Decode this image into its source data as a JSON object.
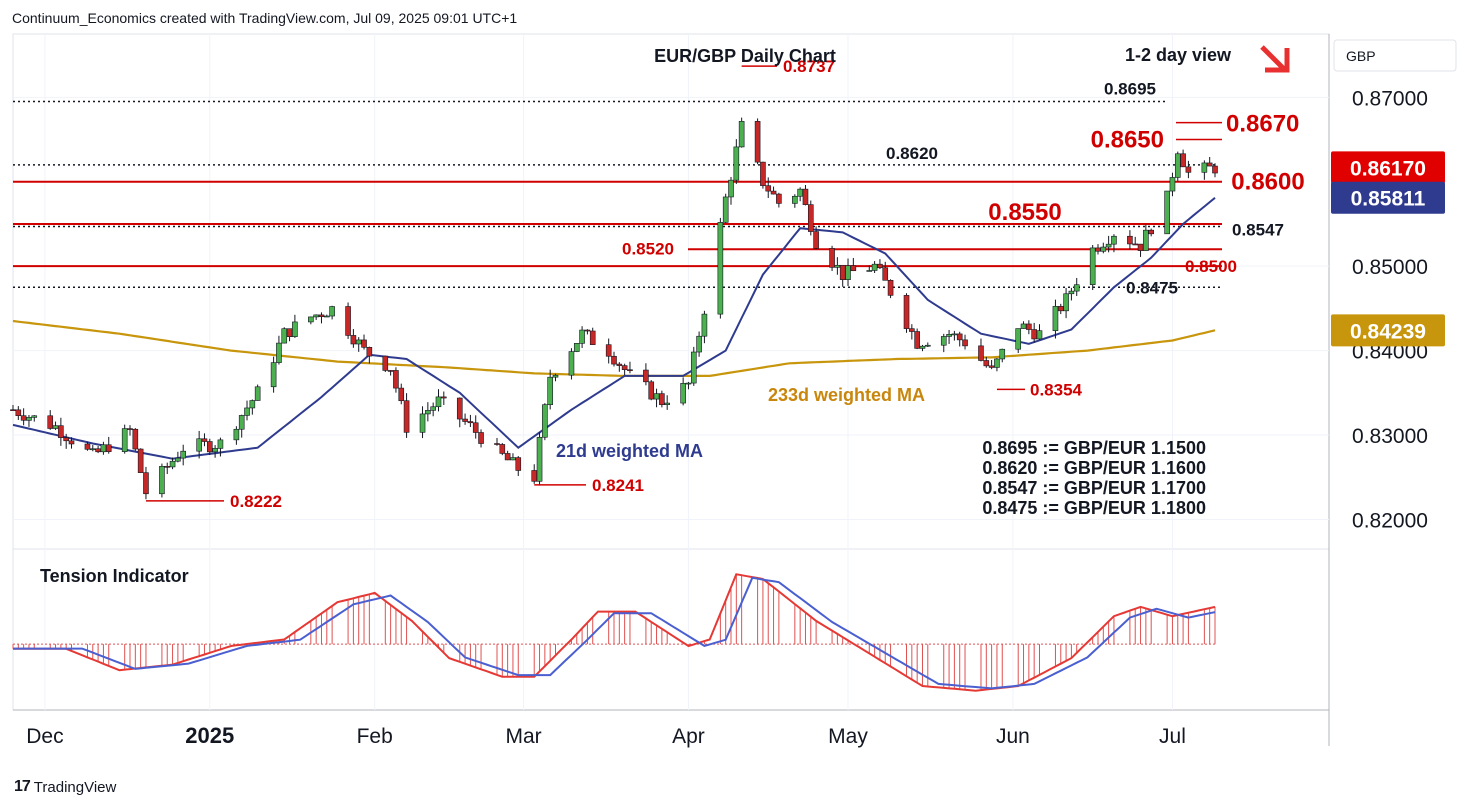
{
  "header": {
    "credit": "Continuum_Economics created with TradingView.com, Jul 09, 2025 09:01 UTC+1"
  },
  "footer": {
    "logo_text": "TradingView",
    "logo_mark": "17"
  },
  "chart_data": {
    "type": "candlestick",
    "title": "EUR/GBP Daily Chart",
    "view_label": "1-2 day view",
    "currency": "GBP",
    "ylim": [
      0.8165,
      0.8775
    ],
    "yticks": [
      "0.87000",
      "0.85000",
      "0.84000",
      "0.83000",
      "0.82000"
    ],
    "ytick_values": [
      0.87,
      0.85,
      0.84,
      0.83,
      0.82
    ],
    "xticks": [
      "Dec",
      "2025",
      "Feb",
      "Mar",
      "Apr",
      "May",
      "Jun",
      "Jul"
    ],
    "xtick_dates": [
      "2024-12-01",
      "2025-01-01",
      "2025-02-01",
      "2025-03-01",
      "2025-04-01",
      "2025-05-01",
      "2025-06-01",
      "2025-07-01"
    ],
    "date_range": [
      "2024-11-25",
      "2025-07-09"
    ],
    "price_badges": [
      {
        "label": "0.86170",
        "value": 0.8617,
        "color": "#e00000"
      },
      {
        "label": "0.85811",
        "value": 0.85811,
        "color": "#2e3b8f"
      },
      {
        "label": "0.84239",
        "value": 0.84239,
        "color": "#c8960c"
      }
    ],
    "levels": [
      {
        "value": 0.8695,
        "label": "0.8695",
        "style": "dotted",
        "color": "#131722"
      },
      {
        "value": 0.862,
        "label": "0.8620",
        "style": "dotted",
        "color": "#131722"
      },
      {
        "value": 0.86,
        "label": "0.8600",
        "style": "solid",
        "color": "#d00000"
      },
      {
        "value": 0.855,
        "label": "0.8550",
        "style": "solid",
        "color": "#d00000"
      },
      {
        "value": 0.8547,
        "label": "0.8547",
        "style": "dotted",
        "color": "#131722"
      },
      {
        "value": 0.852,
        "label": "0.8520",
        "style": "solid",
        "color": "#d00000"
      },
      {
        "value": 0.85,
        "label": "0.8500",
        "style": "solid",
        "color": "#d00000"
      },
      {
        "value": 0.8475,
        "label": "0.8475",
        "style": "dotted",
        "color": "#131722"
      }
    ],
    "annotations": [
      {
        "text": "0.8737",
        "date": "2025-04-11",
        "value": 0.8737,
        "color": "#d00000"
      },
      {
        "text": "0.8670",
        "value": 0.867,
        "color": "#d00000"
      },
      {
        "text": "0.8650",
        "value": 0.865,
        "color": "#d00000"
      },
      {
        "text": "0.8354",
        "date": "2025-05-29",
        "value": 0.8354,
        "color": "#d00000"
      },
      {
        "text": "0.8241",
        "date": "2025-03-03",
        "value": 0.8241,
        "color": "#d00000"
      },
      {
        "text": "0.8222",
        "date": "2024-12-20",
        "value": 0.8222,
        "color": "#d00000"
      }
    ],
    "ma_labels": {
      "ma21": "21d weighted MA",
      "ma233": "233d weighted MA"
    },
    "conversions": [
      "0.8695 := GBP/EUR 1.1500",
      "0.8620 := GBP/EUR 1.1600",
      "0.8547 := GBP/EUR 1.1700",
      "0.8475 := GBP/EUR 1.1800"
    ],
    "close_anchors": [
      [
        "2024-11-25",
        0.833
      ],
      [
        "2024-12-03",
        0.831
      ],
      [
        "2024-12-10",
        0.8275
      ],
      [
        "2024-12-17",
        0.8305
      ],
      [
        "2024-12-20",
        0.8232
      ],
      [
        "2024-12-27",
        0.8285
      ],
      [
        "2025-01-03",
        0.829
      ],
      [
        "2025-01-10",
        0.835
      ],
      [
        "2025-01-15",
        0.842
      ],
      [
        "2025-01-20",
        0.844
      ],
      [
        "2025-01-24",
        0.845
      ],
      [
        "2025-01-30",
        0.84
      ],
      [
        "2025-02-04",
        0.838
      ],
      [
        "2025-02-07",
        0.831
      ],
      [
        "2025-02-13",
        0.834
      ],
      [
        "2025-02-19",
        0.831
      ],
      [
        "2025-02-24",
        0.828
      ],
      [
        "2025-02-28",
        0.826
      ],
      [
        "2025-03-03",
        0.825
      ],
      [
        "2025-03-06",
        0.837
      ],
      [
        "2025-03-12",
        0.842
      ],
      [
        "2025-03-17",
        0.84
      ],
      [
        "2025-03-21",
        0.837
      ],
      [
        "2025-03-27",
        0.834
      ],
      [
        "2025-04-01",
        0.836
      ],
      [
        "2025-04-04",
        0.845
      ],
      [
        "2025-04-08",
        0.858
      ],
      [
        "2025-04-11",
        0.8665
      ],
      [
        "2025-04-15",
        0.86
      ],
      [
        "2025-04-18",
        0.8575
      ],
      [
        "2025-04-22",
        0.859
      ],
      [
        "2025-04-25",
        0.853
      ],
      [
        "2025-04-30",
        0.849
      ],
      [
        "2025-05-06",
        0.85
      ],
      [
        "2025-05-09",
        0.847
      ],
      [
        "2025-05-14",
        0.841
      ],
      [
        "2025-05-20",
        0.842
      ],
      [
        "2025-05-23",
        0.841
      ],
      [
        "2025-05-28",
        0.8375
      ],
      [
        "2025-06-02",
        0.843
      ],
      [
        "2025-06-06",
        0.842
      ],
      [
        "2025-06-11",
        0.846
      ],
      [
        "2025-06-16",
        0.852
      ],
      [
        "2025-06-20",
        0.854
      ],
      [
        "2025-06-25",
        0.8525
      ],
      [
        "2025-06-30",
        0.858
      ],
      [
        "2025-07-02",
        0.864
      ],
      [
        "2025-07-04",
        0.861
      ],
      [
        "2025-07-09",
        0.8617
      ]
    ],
    "ma21": [
      [
        "2024-11-25",
        0.8312
      ],
      [
        "2024-12-10",
        0.829
      ],
      [
        "2024-12-25",
        0.8272
      ],
      [
        "2025-01-10",
        0.8285
      ],
      [
        "2025-01-22",
        0.8345
      ],
      [
        "2025-01-31",
        0.8395
      ],
      [
        "2025-02-07",
        0.839
      ],
      [
        "2025-02-17",
        0.835
      ],
      [
        "2025-02-28",
        0.8285
      ],
      [
        "2025-03-10",
        0.833
      ],
      [
        "2025-03-20",
        0.837
      ],
      [
        "2025-03-31",
        0.837
      ],
      [
        "2025-04-08",
        0.84
      ],
      [
        "2025-04-15",
        0.849
      ],
      [
        "2025-04-22",
        0.8545
      ],
      [
        "2025-04-30",
        0.854
      ],
      [
        "2025-05-08",
        0.8515
      ],
      [
        "2025-05-16",
        0.846
      ],
      [
        "2025-05-26",
        0.842
      ],
      [
        "2025-06-04",
        0.8408
      ],
      [
        "2025-06-12",
        0.8425
      ],
      [
        "2025-06-20",
        0.8475
      ],
      [
        "2025-06-27",
        0.851
      ],
      [
        "2025-07-03",
        0.855
      ],
      [
        "2025-07-09",
        0.8581
      ]
    ],
    "ma233": [
      [
        "2024-11-25",
        0.8435
      ],
      [
        "2024-12-15",
        0.842
      ],
      [
        "2025-01-05",
        0.84
      ],
      [
        "2025-01-25",
        0.8387
      ],
      [
        "2025-02-15",
        0.838
      ],
      [
        "2025-03-03",
        0.8373
      ],
      [
        "2025-03-20",
        0.837
      ],
      [
        "2025-04-05",
        0.837
      ],
      [
        "2025-04-20",
        0.8385
      ],
      [
        "2025-05-10",
        0.839
      ],
      [
        "2025-05-28",
        0.8392
      ],
      [
        "2025-06-15",
        0.84
      ],
      [
        "2025-07-01",
        0.8412
      ],
      [
        "2025-07-09",
        0.8424
      ]
    ],
    "tension_indicator": {
      "title": "Tension Indicator",
      "anchors": [
        [
          "2024-11-25",
          -0.05
        ],
        [
          "2024-12-05",
          -0.05
        ],
        [
          "2024-12-15",
          -0.28
        ],
        [
          "2024-12-25",
          -0.22
        ],
        [
          "2025-01-05",
          -0.02
        ],
        [
          "2025-01-15",
          0.05
        ],
        [
          "2025-01-25",
          0.45
        ],
        [
          "2025-02-01",
          0.55
        ],
        [
          "2025-02-08",
          0.25
        ],
        [
          "2025-02-15",
          -0.15
        ],
        [
          "2025-02-25",
          -0.35
        ],
        [
          "2025-03-03",
          -0.35
        ],
        [
          "2025-03-10",
          0.05
        ],
        [
          "2025-03-15",
          0.35
        ],
        [
          "2025-03-22",
          0.35
        ],
        [
          "2025-04-01",
          -0.02
        ],
        [
          "2025-04-05",
          0.05
        ],
        [
          "2025-04-10",
          0.75
        ],
        [
          "2025-04-15",
          0.7
        ],
        [
          "2025-04-25",
          0.25
        ],
        [
          "2025-05-05",
          -0.1
        ],
        [
          "2025-05-15",
          -0.45
        ],
        [
          "2025-05-25",
          -0.5
        ],
        [
          "2025-06-02",
          -0.45
        ],
        [
          "2025-06-12",
          -0.15
        ],
        [
          "2025-06-20",
          0.3
        ],
        [
          "2025-06-25",
          0.4
        ],
        [
          "2025-07-01",
          0.3
        ],
        [
          "2025-07-09",
          0.4
        ]
      ],
      "range": [
        -0.6,
        0.85
      ]
    }
  }
}
